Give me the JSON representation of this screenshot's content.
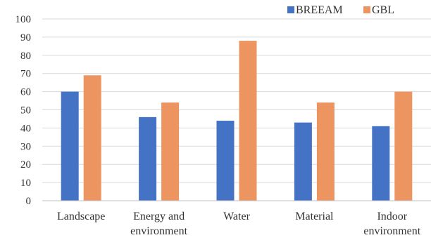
{
  "chart_data": {
    "type": "bar",
    "categories": [
      [
        "Landscape"
      ],
      [
        "Energy and",
        "environment"
      ],
      [
        "Water"
      ],
      [
        "Material"
      ],
      [
        "Indoor",
        "environment"
      ]
    ],
    "series": [
      {
        "name": "BREEAM",
        "color": "#4472C4",
        "values": [
          60,
          46,
          44,
          43,
          41
        ]
      },
      {
        "name": "GBL",
        "color": "#ED9560",
        "values": [
          69,
          54,
          88,
          54,
          60
        ]
      }
    ],
    "yticks": [
      0,
      10,
      20,
      30,
      40,
      50,
      60,
      70,
      80,
      90,
      100
    ],
    "ylim": [
      0,
      100
    ],
    "grid": true,
    "legend_position": "top-right"
  }
}
